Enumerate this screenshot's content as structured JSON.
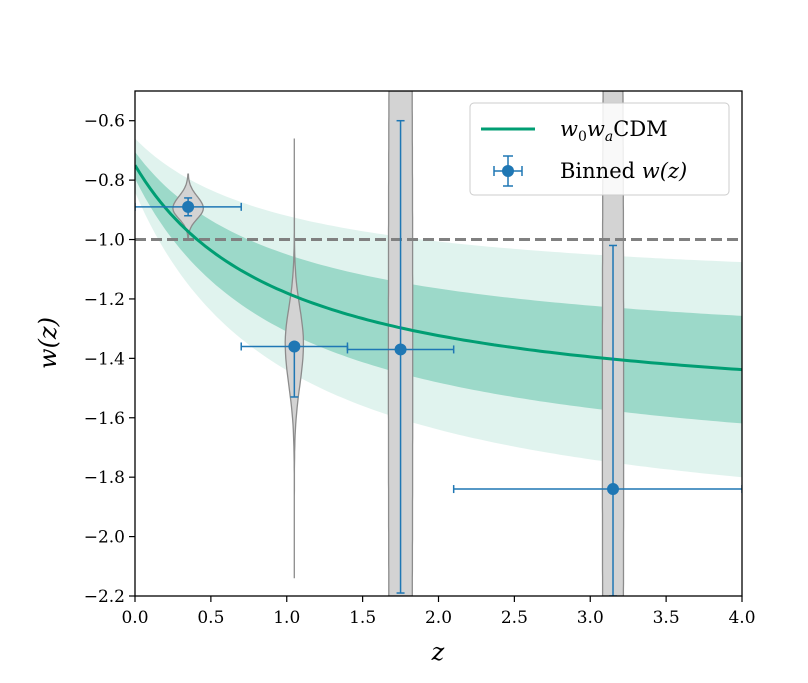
{
  "chart_data": {
    "type": "line",
    "title": "",
    "xlabel": "z",
    "ylabel": "w(z)",
    "xlim": [
      0.0,
      4.0
    ],
    "ylim": [
      -2.2,
      -0.5
    ],
    "x_ticks": [
      0.0,
      0.5,
      1.0,
      1.5,
      2.0,
      2.5,
      3.0,
      3.5,
      4.0
    ],
    "x_tick_labels": [
      "0.0",
      "0.5",
      "1.0",
      "1.5",
      "2.0",
      "2.5",
      "3.0",
      "3.5",
      "4.0"
    ],
    "y_ticks": [
      -2.2,
      -2.0,
      -1.8,
      -1.6,
      -1.4,
      -1.2,
      -1.0,
      -0.8,
      -0.6
    ],
    "y_tick_labels": [
      "−2.2",
      "−2.0",
      "−1.8",
      "−1.6",
      "−1.4",
      "−1.2",
      "−1.0",
      "−0.8",
      "−0.6"
    ],
    "legend": {
      "position": "top-right",
      "entries": [
        {
          "label_main": "w",
          "sub1": "0",
          "mid": "w",
          "sub2": "a",
          "tail": "CDM"
        },
        {
          "label_plain": "Binned ",
          "label_italic": "w(z)"
        }
      ]
    },
    "reference_line": {
      "y": -1.0,
      "style": "dashed",
      "color": "#808080"
    },
    "model": {
      "name": "w0waCDM",
      "color": "#009e73",
      "w0": -0.75,
      "wa": -0.86,
      "sigma1": {
        "w0": 0.045,
        "wa": 0.17
      },
      "sigma2": {
        "w0": 0.09,
        "wa": 0.34
      }
    },
    "binned": {
      "name": "Binned w(z)",
      "color": "#1f77b4",
      "points": [
        {
          "x": 0.35,
          "xlo": 0.0,
          "xhi": 0.7,
          "y": -0.89,
          "ylo": -0.92,
          "yhi": -0.86
        },
        {
          "x": 1.05,
          "xlo": 0.7,
          "xhi": 1.4,
          "y": -1.36,
          "ylo": -1.53,
          "yhi": -1.36
        },
        {
          "x": 1.75,
          "xlo": 1.4,
          "xhi": 2.1,
          "y": -1.37,
          "ylo": -2.19,
          "yhi": -0.6
        },
        {
          "x": 3.15,
          "xlo": 2.1,
          "xhi": 4.0,
          "y": -1.84,
          "ylo": -2.2,
          "yhi": -1.02
        }
      ]
    },
    "violins": {
      "color": "#d3d3d3",
      "edge": "#8c8c8c",
      "items": [
        {
          "x": 0.35,
          "ymin": -1.0,
          "ymax": -0.78,
          "peak": -0.895,
          "halfwidth": 0.1,
          "sigma_low": 0.035,
          "sigma_high": 0.04
        },
        {
          "x": 1.05,
          "ymin": -2.14,
          "ymax": -0.66,
          "peak": -1.35,
          "halfwidth": 0.06,
          "sigma_low": 0.14,
          "sigma_high": 0.12
        },
        {
          "x": 1.75,
          "ymin": -2.2,
          "ymax": -0.5,
          "peak": -1.4,
          "halfwidth": 0.08,
          "sigma_low": 3.0,
          "sigma_high": 3.0
        },
        {
          "x": 3.15,
          "ymin": -2.2,
          "ymax": -0.5,
          "peak": -1.6,
          "halfwidth": 0.07,
          "sigma_low": 3.0,
          "sigma_high": 3.0
        }
      ]
    }
  }
}
